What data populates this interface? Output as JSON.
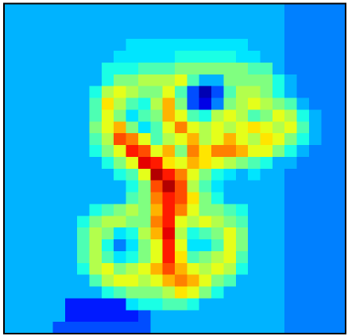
{
  "chart_data": {
    "type": "heatmap",
    "colormap": "jet",
    "values": [
      [
        0.3,
        0.3,
        0.3,
        0.3,
        0.3,
        0.3,
        0.3,
        0.3,
        0.3,
        0.3,
        0.3,
        0.3,
        0.3,
        0.3,
        0.3,
        0.3,
        0.3,
        0.3,
        0.3,
        0.3,
        0.3,
        0.3,
        0.3,
        0.25,
        0.25,
        0.25,
        0.25,
        0.25
      ],
      [
        0.3,
        0.3,
        0.3,
        0.3,
        0.3,
        0.3,
        0.3,
        0.3,
        0.3,
        0.3,
        0.3,
        0.3,
        0.3,
        0.3,
        0.3,
        0.3,
        0.3,
        0.3,
        0.3,
        0.3,
        0.3,
        0.3,
        0.3,
        0.25,
        0.25,
        0.25,
        0.25,
        0.25
      ],
      [
        0.3,
        0.3,
        0.3,
        0.3,
        0.3,
        0.3,
        0.3,
        0.3,
        0.3,
        0.3,
        0.3,
        0.3,
        0.3,
        0.3,
        0.3,
        0.3,
        0.3,
        0.3,
        0.3,
        0.3,
        0.3,
        0.3,
        0.3,
        0.25,
        0.25,
        0.25,
        0.25,
        0.25
      ],
      [
        0.3,
        0.3,
        0.3,
        0.3,
        0.3,
        0.3,
        0.3,
        0.3,
        0.3,
        0.3,
        0.35,
        0.35,
        0.35,
        0.35,
        0.35,
        0.35,
        0.35,
        0.35,
        0.35,
        0.35,
        0.3,
        0.3,
        0.3,
        0.25,
        0.25,
        0.25,
        0.25,
        0.25
      ],
      [
        0.3,
        0.3,
        0.3,
        0.3,
        0.3,
        0.3,
        0.3,
        0.3,
        0.3,
        0.35,
        0.35,
        0.35,
        0.35,
        0.35,
        0.4,
        0.4,
        0.4,
        0.4,
        0.4,
        0.35,
        0.35,
        0.3,
        0.3,
        0.25,
        0.25,
        0.25,
        0.25,
        0.25
      ],
      [
        0.3,
        0.3,
        0.3,
        0.3,
        0.3,
        0.3,
        0.3,
        0.3,
        0.4,
        0.4,
        0.4,
        0.45,
        0.45,
        0.45,
        0.5,
        0.5,
        0.5,
        0.5,
        0.5,
        0.5,
        0.45,
        0.45,
        0.3,
        0.25,
        0.25,
        0.25,
        0.25,
        0.25
      ],
      [
        0.3,
        0.3,
        0.3,
        0.3,
        0.3,
        0.3,
        0.3,
        0.3,
        0.4,
        0.5,
        0.5,
        0.55,
        0.55,
        0.55,
        0.6,
        0.45,
        0.3,
        0.3,
        0.5,
        0.5,
        0.5,
        0.5,
        0.4,
        0.3,
        0.25,
        0.25,
        0.25,
        0.25
      ],
      [
        0.3,
        0.3,
        0.3,
        0.3,
        0.3,
        0.3,
        0.3,
        0.4,
        0.55,
        0.6,
        0.55,
        0.5,
        0.5,
        0.6,
        0.45,
        0.2,
        0.05,
        0.2,
        0.45,
        0.55,
        0.55,
        0.5,
        0.4,
        0.3,
        0.25,
        0.25,
        0.25,
        0.25
      ],
      [
        0.3,
        0.3,
        0.3,
        0.3,
        0.3,
        0.3,
        0.3,
        0.45,
        0.65,
        0.55,
        0.45,
        0.4,
        0.55,
        0.7,
        0.5,
        0.2,
        0.1,
        0.25,
        0.5,
        0.55,
        0.6,
        0.55,
        0.5,
        0.45,
        0.3,
        0.25,
        0.25,
        0.25
      ],
      [
        0.3,
        0.3,
        0.3,
        0.3,
        0.3,
        0.3,
        0.3,
        0.45,
        0.6,
        0.5,
        0.35,
        0.45,
        0.5,
        0.7,
        0.6,
        0.45,
        0.4,
        0.55,
        0.6,
        0.55,
        0.45,
        0.5,
        0.6,
        0.55,
        0.4,
        0.3,
        0.25,
        0.25
      ],
      [
        0.3,
        0.3,
        0.3,
        0.3,
        0.3,
        0.3,
        0.3,
        0.5,
        0.6,
        0.7,
        0.5,
        0.35,
        0.45,
        0.6,
        0.75,
        0.6,
        0.55,
        0.6,
        0.55,
        0.6,
        0.65,
        0.6,
        0.55,
        0.6,
        0.45,
        0.3,
        0.25,
        0.25
      ],
      [
        0.3,
        0.3,
        0.3,
        0.3,
        0.3,
        0.3,
        0.3,
        0.45,
        0.55,
        0.8,
        0.75,
        0.6,
        0.45,
        0.55,
        0.6,
        0.7,
        0.55,
        0.6,
        0.7,
        0.6,
        0.55,
        0.65,
        0.6,
        0.5,
        0.4,
        0.3,
        0.25,
        0.25
      ],
      [
        0.3,
        0.3,
        0.3,
        0.3,
        0.3,
        0.3,
        0.3,
        0.4,
        0.5,
        0.6,
        0.85,
        0.8,
        0.6,
        0.7,
        0.5,
        0.75,
        0.65,
        0.75,
        0.75,
        0.7,
        0.6,
        0.6,
        0.5,
        0.4,
        0.3,
        0.25,
        0.25,
        0.25
      ],
      [
        0.3,
        0.3,
        0.3,
        0.3,
        0.3,
        0.3,
        0.3,
        0.3,
        0.4,
        0.5,
        0.6,
        0.9,
        0.85,
        0.65,
        0.6,
        0.7,
        0.65,
        0.6,
        0.55,
        0.5,
        0.45,
        0.4,
        0.3,
        0.3,
        0.25,
        0.25,
        0.25,
        0.25
      ],
      [
        0.3,
        0.3,
        0.3,
        0.3,
        0.3,
        0.3,
        0.3,
        0.3,
        0.3,
        0.4,
        0.45,
        0.6,
        0.95,
        0.85,
        0.75,
        0.6,
        0.5,
        0.4,
        0.35,
        0.3,
        0.35,
        0.3,
        0.3,
        0.25,
        0.25,
        0.25,
        0.25,
        0.25
      ],
      [
        0.3,
        0.3,
        0.3,
        0.3,
        0.3,
        0.3,
        0.3,
        0.3,
        0.3,
        0.3,
        0.4,
        0.5,
        0.8,
        0.95,
        0.8,
        0.55,
        0.45,
        0.35,
        0.3,
        0.3,
        0.3,
        0.3,
        0.3,
        0.25,
        0.25,
        0.25,
        0.25,
        0.25
      ],
      [
        0.3,
        0.3,
        0.3,
        0.3,
        0.3,
        0.3,
        0.3,
        0.3,
        0.3,
        0.3,
        0.45,
        0.5,
        0.75,
        0.85,
        0.8,
        0.65,
        0.5,
        0.4,
        0.3,
        0.3,
        0.3,
        0.3,
        0.3,
        0.25,
        0.25,
        0.25,
        0.25,
        0.25
      ],
      [
        0.3,
        0.3,
        0.3,
        0.3,
        0.3,
        0.3,
        0.3,
        0.4,
        0.45,
        0.5,
        0.55,
        0.5,
        0.7,
        0.85,
        0.75,
        0.6,
        0.5,
        0.5,
        0.45,
        0.4,
        0.3,
        0.3,
        0.3,
        0.25,
        0.25,
        0.25,
        0.25,
        0.25
      ],
      [
        0.3,
        0.3,
        0.3,
        0.3,
        0.3,
        0.3,
        0.4,
        0.5,
        0.55,
        0.55,
        0.5,
        0.5,
        0.75,
        0.85,
        0.6,
        0.55,
        0.6,
        0.55,
        0.5,
        0.45,
        0.3,
        0.3,
        0.3,
        0.25,
        0.25,
        0.25,
        0.25,
        0.25
      ],
      [
        0.3,
        0.3,
        0.3,
        0.3,
        0.3,
        0.3,
        0.45,
        0.55,
        0.5,
        0.35,
        0.4,
        0.55,
        0.7,
        0.9,
        0.55,
        0.4,
        0.45,
        0.5,
        0.6,
        0.5,
        0.3,
        0.3,
        0.3,
        0.25,
        0.25,
        0.25,
        0.25,
        0.25
      ],
      [
        0.3,
        0.3,
        0.3,
        0.3,
        0.3,
        0.3,
        0.45,
        0.55,
        0.4,
        0.25,
        0.35,
        0.5,
        0.6,
        0.85,
        0.6,
        0.35,
        0.35,
        0.45,
        0.6,
        0.5,
        0.3,
        0.3,
        0.3,
        0.25,
        0.25,
        0.25,
        0.25,
        0.25
      ],
      [
        0.3,
        0.3,
        0.3,
        0.3,
        0.3,
        0.3,
        0.45,
        0.55,
        0.45,
        0.35,
        0.4,
        0.5,
        0.6,
        0.85,
        0.65,
        0.45,
        0.5,
        0.55,
        0.6,
        0.45,
        0.3,
        0.3,
        0.3,
        0.25,
        0.25,
        0.25,
        0.25,
        0.25
      ],
      [
        0.3,
        0.3,
        0.3,
        0.3,
        0.3,
        0.3,
        0.4,
        0.55,
        0.6,
        0.5,
        0.55,
        0.6,
        0.7,
        0.8,
        0.7,
        0.6,
        0.55,
        0.6,
        0.55,
        0.4,
        0.3,
        0.3,
        0.3,
        0.25,
        0.25,
        0.25,
        0.25,
        0.25
      ],
      [
        0.3,
        0.3,
        0.3,
        0.3,
        0.3,
        0.3,
        0.3,
        0.45,
        0.55,
        0.6,
        0.6,
        0.55,
        0.6,
        0.7,
        0.75,
        0.7,
        0.6,
        0.5,
        0.45,
        0.3,
        0.3,
        0.3,
        0.3,
        0.25,
        0.25,
        0.25,
        0.25,
        0.25
      ],
      [
        0.3,
        0.3,
        0.3,
        0.3,
        0.3,
        0.3,
        0.3,
        0.3,
        0.4,
        0.45,
        0.5,
        0.5,
        0.5,
        0.55,
        0.65,
        0.6,
        0.5,
        0.4,
        0.3,
        0.3,
        0.3,
        0.3,
        0.3,
        0.25,
        0.25,
        0.25,
        0.25,
        0.25
      ],
      [
        0.3,
        0.3,
        0.3,
        0.3,
        0.3,
        0.15,
        0.15,
        0.15,
        0.15,
        0.15,
        0.35,
        0.4,
        0.4,
        0.45,
        0.45,
        0.4,
        0.3,
        0.3,
        0.3,
        0.3,
        0.3,
        0.3,
        0.3,
        0.25,
        0.25,
        0.25,
        0.25,
        0.25
      ],
      [
        0.3,
        0.3,
        0.3,
        0.3,
        0.3,
        0.15,
        0.15,
        0.15,
        0.15,
        0.15,
        0.15,
        0.2,
        0.3,
        0.3,
        0.3,
        0.3,
        0.3,
        0.3,
        0.3,
        0.3,
        0.3,
        0.3,
        0.3,
        0.25,
        0.25,
        0.25,
        0.25,
        0.25
      ],
      [
        0.3,
        0.3,
        0.3,
        0.3,
        0.2,
        0.2,
        0.2,
        0.2,
        0.2,
        0.2,
        0.2,
        0.2,
        0.3,
        0.3,
        0.3,
        0.3,
        0.3,
        0.3,
        0.3,
        0.3,
        0.3,
        0.3,
        0.3,
        0.25,
        0.25,
        0.25,
        0.25,
        0.25
      ]
    ]
  }
}
